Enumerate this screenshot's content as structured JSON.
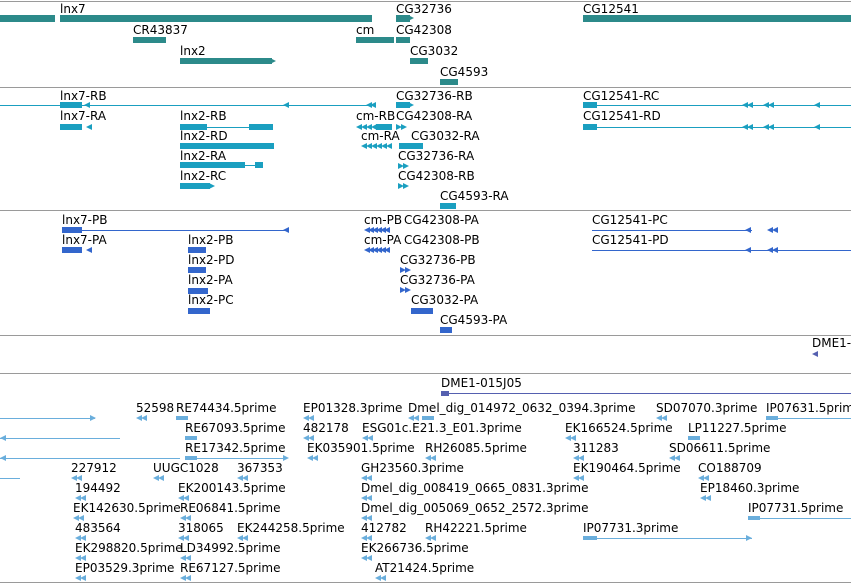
{
  "colors": {
    "gene": "#2c8a8a",
    "transcript": "#1a9fc0",
    "protein": "#3366cc",
    "clone": "#5560b0",
    "est": "#6aaedc",
    "separator": "#9a9a9a"
  },
  "tracks": {
    "genes": {
      "labels": [
        "lnx7",
        "CG32736",
        "CG12541",
        "CR43837",
        "cm",
        "CG42308",
        "lnx2",
        "CG3032",
        "CG4593"
      ]
    },
    "transcripts": {
      "labels": [
        "lnx7-RB",
        "CG32736-RB",
        "CG12541-RC",
        "lnx7-RA",
        "lnx2-RB",
        "cm-RB",
        "CG42308-RA",
        "CG12541-RD",
        "lnx2-RD",
        "cm-RA",
        "CG3032-RA",
        "lnx2-RA",
        "CG32736-RA",
        "lnx2-RC",
        "CG42308-RB",
        "CG4593-RA"
      ]
    },
    "proteins": {
      "labels": [
        "lnx7-PB",
        "cm-PB",
        "CG42308-PA",
        "CG12541-PC",
        "lnx7-PA",
        "lnx2-PB",
        "cm-PA",
        "CG42308-PB",
        "CG12541-PD",
        "lnx2-PD",
        "CG32736-PB",
        "lnx2-PA",
        "CG32736-PA",
        "lnx2-PC",
        "CG3032-PA",
        "CG4593-PA"
      ]
    },
    "clones_a": {
      "labels": [
        "DME1-"
      ]
    },
    "clones_b": {
      "labels": [
        "DME1-015J05"
      ]
    },
    "ests": {
      "labels": [
        "52598",
        "RE74434.5prime",
        "EP01328.3prime",
        "Dmel_dig_014972_0632_0394.3prime",
        "SD07070.3prime",
        "IP07631.5prime",
        "RE67093.5prime",
        "482178",
        "ESG01c.E21.3_E01.3prime",
        "EK166524.5prime",
        "LP11227.5prime",
        "RE17342.5prime",
        "EK035901.5prime",
        "RH26085.5prime",
        "311283",
        "SD06611.5prime",
        "227912",
        "UUGC1028",
        "367353",
        "GH23560.3prime",
        "EK190464.5prime",
        "CO188709",
        "194492",
        "EK200143.5prime",
        "Dmel_dig_008419_0665_0831.3prime",
        "EP18460.3prime",
        "EK142630.5prime",
        "RE06841.5prime",
        "Dmel_dig_005069_0652_2572.3prime",
        "IP07731.5prime",
        "483564",
        "318065",
        "EK244258.5prime",
        "412782",
        "RH42221.5prime",
        "IP07731.3prime",
        "EK298820.5prime",
        "LD34992.5prime",
        "EK266736.5prime",
        "EP03529.3prime",
        "RE67127.5prime",
        "AT21424.5prime"
      ]
    }
  }
}
